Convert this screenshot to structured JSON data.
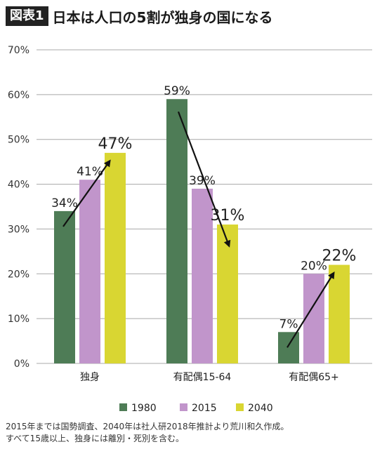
{
  "header": {
    "badge": "図表1",
    "title": "日本は人口の5割が独身の国になる"
  },
  "footnote": {
    "line1": "2015年までは国勢調査、2040年は社人研2018年推計より荒川和久作成。",
    "line2": "すべて15歳以上、独身には離別・死別を含む。"
  },
  "chart_data": {
    "type": "bar",
    "categories": [
      "独身",
      "有配偶15-64",
      "有配偶65+"
    ],
    "series": [
      {
        "name": "1980",
        "values": [
          34,
          59,
          7
        ],
        "color": "#4e7c56"
      },
      {
        "name": "2015",
        "values": [
          41,
          39,
          20
        ],
        "color": "#c195cb"
      },
      {
        "name": "2040",
        "values": [
          47,
          31,
          22
        ],
        "color": "#d9d632"
      }
    ],
    "value_labels": [
      [
        "34%",
        "41%",
        "47%"
      ],
      [
        "59%",
        "39%",
        "31%"
      ],
      [
        "7%",
        "20%",
        "22%"
      ]
    ],
    "y_ticks": [
      0,
      10,
      20,
      30,
      40,
      50,
      60,
      70
    ],
    "y_tick_labels": [
      "0%",
      "10%",
      "20%",
      "30%",
      "40%",
      "50%",
      "60%",
      "70%"
    ],
    "ylim": [
      0,
      70
    ],
    "grid": true,
    "legend_position": "bottom",
    "trend_arrows": true
  }
}
